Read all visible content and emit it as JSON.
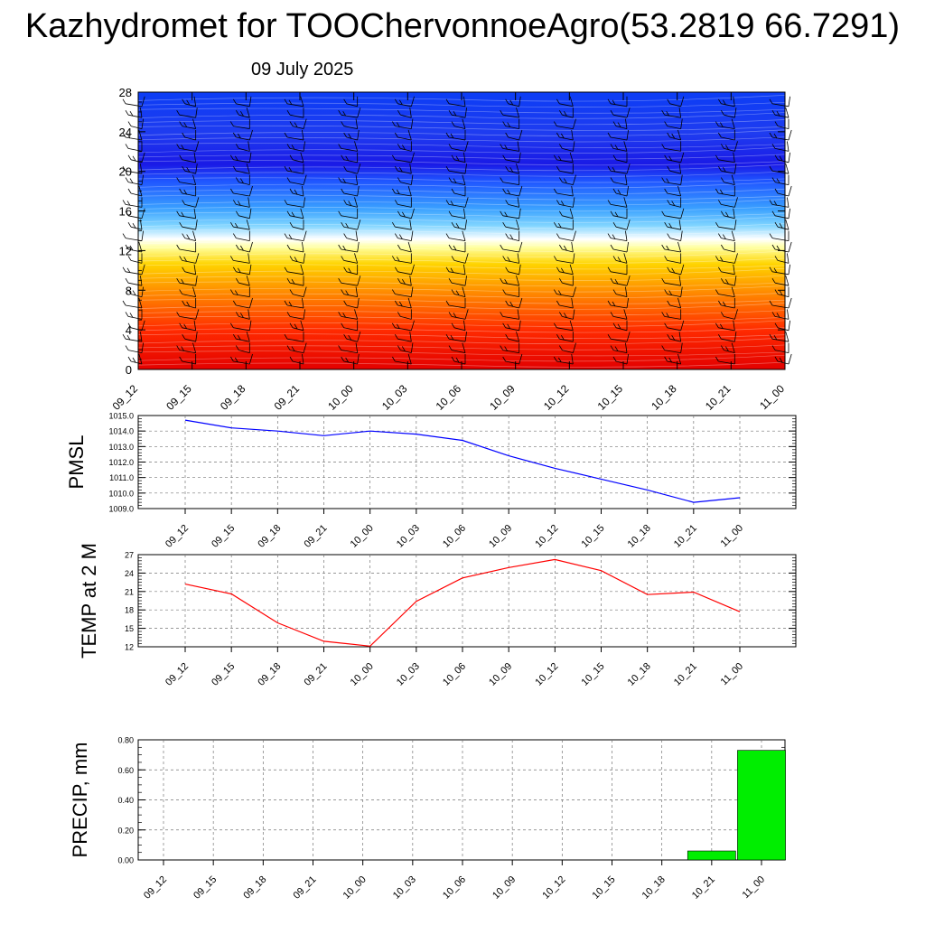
{
  "header": {
    "title": "Kazhydromet for TOOChervonnoeAgro(53.2819 66.7291)",
    "date": "09 July 2025"
  },
  "colors": {
    "pressure_line": "#0000ff",
    "temp_line": "#ff0000",
    "precip_bar": "#00ee00",
    "cross_section_low": "#e60000",
    "cross_section_mid": "#ffff99",
    "cross_section_high": "#0022ff"
  },
  "chart_data": [
    {
      "type": "heatmap",
      "title": "",
      "x": [
        "09_12",
        "09_15",
        "09_18",
        "09_21",
        "10_00",
        "10_03",
        "10_06",
        "10_09",
        "10_12",
        "10_15",
        "10_18",
        "10_21",
        "11_00"
      ],
      "y_ticks": [
        0,
        4,
        8,
        12,
        16,
        20,
        24,
        28
      ],
      "ylim": [
        0,
        28
      ],
      "ylabel": "",
      "xlabel": "",
      "colormap": "red (bottom) to yellow to light blue to blue (top)",
      "overlay": "wind barbs"
    },
    {
      "type": "line",
      "ylabel": "PMSL",
      "x": [
        "09_12",
        "09_15",
        "09_18",
        "09_21",
        "10_00",
        "10_03",
        "10_06",
        "10_09",
        "10_12",
        "10_15",
        "10_18",
        "10_21",
        "11_00"
      ],
      "values": [
        1014.7,
        1014.2,
        1014.0,
        1013.7,
        1014.0,
        1013.8,
        1013.4,
        1012.4,
        1011.6,
        1010.9,
        1010.2,
        1009.4,
        1009.7
      ],
      "ylim": [
        1009.0,
        1015.0
      ],
      "y_ticks": [
        "1009.0",
        "1010.0",
        "1011.0",
        "1012.0",
        "1013.0",
        "1014.0",
        "1015.0"
      ]
    },
    {
      "type": "line",
      "ylabel": "TEMP at 2 M",
      "x": [
        "09_12",
        "09_15",
        "09_18",
        "09_21",
        "10_00",
        "10_03",
        "10_06",
        "10_09",
        "10_12",
        "10_15",
        "10_18",
        "10_21",
        "11_00"
      ],
      "values": [
        22.2,
        20.6,
        15.9,
        12.9,
        12.1,
        19.4,
        23.2,
        24.9,
        26.2,
        24.4,
        20.5,
        20.9,
        17.7
      ],
      "ylim": [
        12,
        27
      ],
      "y_ticks": [
        "12",
        "15",
        "18",
        "21",
        "24",
        "27"
      ]
    },
    {
      "type": "bar",
      "ylabel": "PRECIP, mm",
      "x": [
        "09_12",
        "09_15",
        "09_18",
        "09_21",
        "10_00",
        "10_03",
        "10_06",
        "10_09",
        "10_12",
        "10_15",
        "10_18",
        "10_21",
        "11_00"
      ],
      "values": [
        0,
        0,
        0,
        0,
        0,
        0,
        0,
        0,
        0,
        0,
        0,
        0.06,
        0.73
      ],
      "ylim": [
        0,
        0.8
      ],
      "y_ticks": [
        "0.00",
        "0.20",
        "0.40",
        "0.60",
        "0.80"
      ]
    }
  ]
}
